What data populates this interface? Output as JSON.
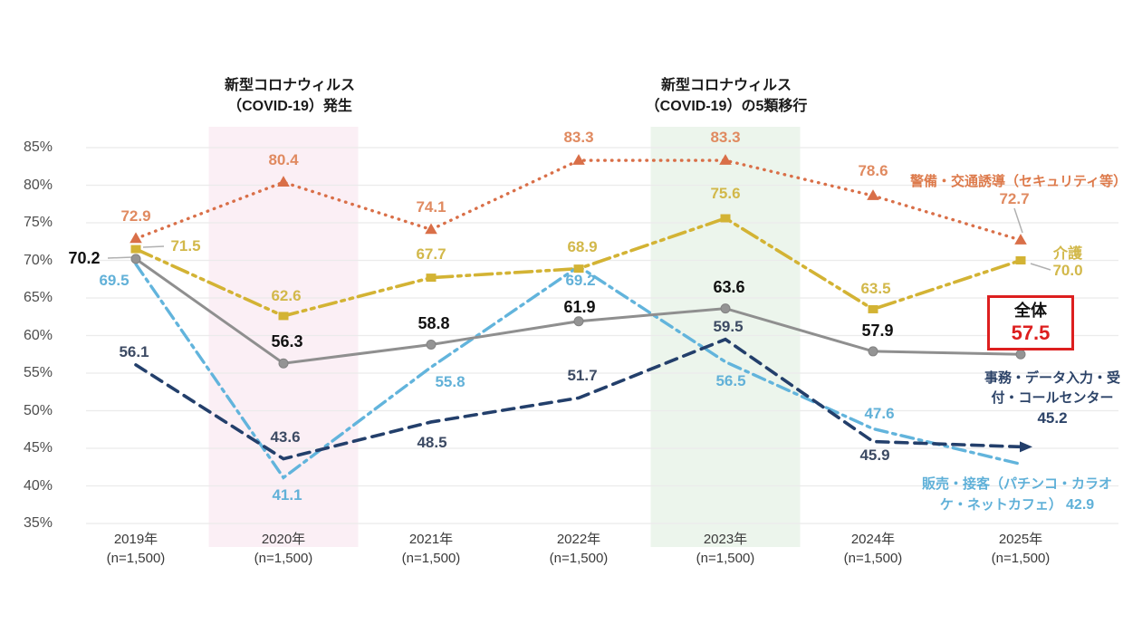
{
  "chart_data": {
    "type": "line",
    "x_categories": [
      "2019年",
      "2020年",
      "2021年",
      "2022年",
      "2023年",
      "2024年",
      "2025年"
    ],
    "x_sublabel": "(n=1,500)",
    "y_axis": {
      "min": 35,
      "max": 85,
      "step": 5,
      "tick_suffix": "%"
    },
    "grid": true,
    "series": [
      {
        "id": "keibi",
        "name": "警備・交通誘導（セキュリティ等）",
        "values": [
          72.9,
          80.4,
          74.1,
          83.3,
          83.3,
          78.6,
          72.7
        ],
        "color": "#d96f48",
        "label_color": "#e08a60",
        "line_style": "dotted",
        "marker": "triangle"
      },
      {
        "id": "kaigo",
        "name": "介護",
        "values": [
          71.5,
          62.6,
          67.7,
          68.9,
          75.6,
          63.5,
          70.0
        ],
        "color": "#d3b334",
        "label_color": "#d2b84a",
        "line_style": "dash-dot-dot",
        "marker": "square"
      },
      {
        "id": "hanbai",
        "name": "販売・接客（パチンコ・カラオケ・ネットカフェ）",
        "values": [
          69.5,
          41.1,
          55.8,
          69.2,
          56.5,
          47.6,
          42.9
        ],
        "color": "#62b4dc",
        "label_color": "#62b1d8",
        "line_style": "dash-dot",
        "marker": "none"
      },
      {
        "id": "jimu",
        "name": "事務・データ入力・受付・コールセンター",
        "values": [
          56.1,
          43.6,
          48.5,
          51.7,
          59.5,
          45.9,
          45.2
        ],
        "color": "#233f6b",
        "label_color": "#3c4a63",
        "line_style": "dashed",
        "marker": "arrow-end"
      },
      {
        "id": "zentai",
        "name": "全体",
        "values": [
          70.2,
          56.3,
          58.8,
          61.9,
          63.6,
          57.9,
          57.5
        ],
        "color": "#8f8f8f",
        "label_color": "#111111",
        "line_style": "solid",
        "marker": "circle"
      }
    ],
    "events": [
      {
        "label": "新型コロナウィルス\n（COVID-19）発生",
        "x_category": "2020年",
        "band_color": "#fbeff5"
      },
      {
        "label": "新型コロナウィルス\n（COVID-19）の5類移行",
        "x_category": "2023年",
        "band_color": "#ecf5ec"
      }
    ],
    "legend": {
      "keibi": {
        "label": "警備・交通誘導（セキュリティ等）",
        "value": "72.7"
      },
      "kaigo": {
        "label": "介護",
        "value": "70.0"
      },
      "zentai": {
        "label": "全体",
        "value": "57.5",
        "highlighted": true,
        "box_color": "#dd1f1f"
      },
      "jimu": {
        "label": "事務・データ入力・受付・コールセンター",
        "value": "45.2"
      },
      "hanbai": {
        "label": "販売・接客（パチンコ・カラオケ・ネットカフェ）",
        "value": "42.9"
      }
    }
  }
}
